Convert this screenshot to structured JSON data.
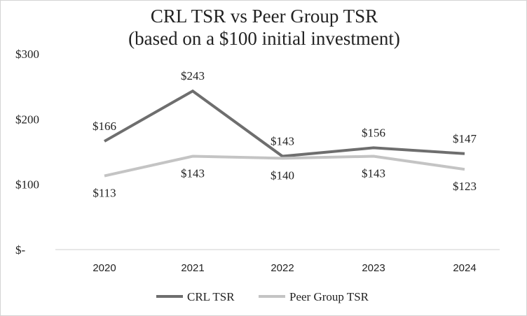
{
  "chart_data": {
    "type": "line",
    "title": "CRL TSR vs Peer Group TSR",
    "subtitle": "(based on a $100 initial investment)",
    "categories": [
      "2020",
      "2021",
      "2022",
      "2023",
      "2024"
    ],
    "series": [
      {
        "name": "CRL TSR",
        "values": [
          166,
          243,
          143,
          156,
          147
        ],
        "labels": [
          "$166",
          "$243",
          "$143",
          "$156",
          "$147"
        ],
        "color": "#6e6e6e"
      },
      {
        "name": "Peer Group TSR",
        "values": [
          113,
          143,
          140,
          143,
          123
        ],
        "labels": [
          "$113",
          "$143",
          "$140",
          "$143",
          "$123"
        ],
        "color": "#c4c4c4"
      }
    ],
    "y_ticks": [
      0,
      100,
      200,
      300
    ],
    "y_tick_labels": [
      "$-",
      "$100",
      "$200",
      "$300"
    ],
    "ylim": [
      0,
      300
    ],
    "xlabel": "",
    "ylabel": "",
    "grid": false,
    "legend_position": "bottom"
  }
}
